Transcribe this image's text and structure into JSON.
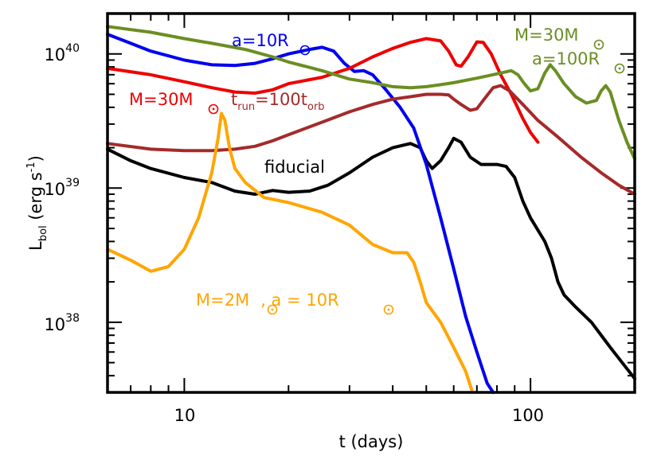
{
  "chart_data": {
    "type": "line",
    "title": "",
    "xlabel": "t (days)",
    "ylabel": "L_bol (erg s^-1)",
    "xscale": "log",
    "yscale": "log",
    "xlim": [
      6.0,
      200.0
    ],
    "ylim": [
      3e+37,
      2e+40
    ],
    "grid": false,
    "x_ticks_major": [
      10,
      100
    ],
    "x_tick_labels": [
      "10",
      "100"
    ],
    "y_ticks_major": [
      1e+38,
      1e+39,
      1e+40
    ],
    "y_tick_labels": [
      {
        "base": "10",
        "exp": "38"
      },
      {
        "base": "10",
        "exp": "39"
      },
      {
        "base": "10",
        "exp": "40"
      }
    ],
    "series": [
      {
        "id": "fiducial",
        "color": "#000000",
        "points": [
          [
            6,
            1.95e+39
          ],
          [
            7,
            1.6e+39
          ],
          [
            8,
            1.4e+39
          ],
          [
            10,
            1.2e+39
          ],
          [
            12,
            1.1e+39
          ],
          [
            14,
            9.5e+38
          ],
          [
            16,
            9e+38
          ],
          [
            17,
            9.3e+38
          ],
          [
            18,
            9.6e+38
          ],
          [
            20,
            9.3e+38
          ],
          [
            23,
            9.5e+38
          ],
          [
            26,
            1.05e+39
          ],
          [
            30,
            1.3e+39
          ],
          [
            35,
            1.7e+39
          ],
          [
            40,
            2e+39
          ],
          [
            45,
            2.15e+39
          ],
          [
            48,
            2e+39
          ],
          [
            50,
            1.6e+39
          ],
          [
            52,
            1.4e+39
          ],
          [
            55,
            1.6e+39
          ],
          [
            58,
            2e+39
          ],
          [
            60,
            2.35e+39
          ],
          [
            63,
            2.2e+39
          ],
          [
            67,
            1.7e+39
          ],
          [
            72,
            1.5e+39
          ],
          [
            80,
            1.5e+39
          ],
          [
            85,
            1.45e+39
          ],
          [
            90,
            1.2e+39
          ],
          [
            95,
            8e+38
          ],
          [
            100,
            6e+38
          ],
          [
            110,
            4e+38
          ],
          [
            115,
            3e+38
          ],
          [
            120,
            2e+38
          ],
          [
            125,
            1.6e+38
          ],
          [
            135,
            1.3e+38
          ],
          [
            150,
            1e+38
          ],
          [
            170,
            6.5e+37
          ],
          [
            190,
            4.5e+37
          ],
          [
            200,
            3.8e+37
          ]
        ]
      },
      {
        "id": "a10",
        "color": "#0000ee",
        "points": [
          [
            6,
            1.4e+40
          ],
          [
            7,
            1.2e+40
          ],
          [
            8,
            1.05e+40
          ],
          [
            10,
            9e+39
          ],
          [
            12,
            8.3e+39
          ],
          [
            14,
            8.2e+39
          ],
          [
            16,
            8.5e+39
          ],
          [
            18,
            9.2e+39
          ],
          [
            20,
            1e+40
          ],
          [
            23,
            1.08e+40
          ],
          [
            25,
            1.12e+40
          ],
          [
            27,
            1.05e+40
          ],
          [
            29,
            8.5e+39
          ],
          [
            31,
            7.4e+39
          ],
          [
            33,
            7.5e+39
          ],
          [
            35,
            7e+39
          ],
          [
            38,
            5.5e+39
          ],
          [
            42,
            4e+39
          ],
          [
            46,
            2.8e+39
          ],
          [
            50,
            1.5e+39
          ],
          [
            55,
            6e+38
          ],
          [
            60,
            2.5e+38
          ],
          [
            65,
            1.1e+38
          ],
          [
            70,
            6e+37
          ],
          [
            75,
            3.5e+37
          ],
          [
            78,
            3e+37
          ]
        ]
      },
      {
        "id": "m30",
        "color": "#ee0000",
        "points": [
          [
            6,
            7.8e+39
          ],
          [
            8,
            7e+39
          ],
          [
            10,
            6.2e+39
          ],
          [
            12,
            5.6e+39
          ],
          [
            14,
            5.2e+39
          ],
          [
            16,
            5.1e+39
          ],
          [
            18,
            5.4e+39
          ],
          [
            20,
            6e+39
          ],
          [
            25,
            6.7e+39
          ],
          [
            30,
            7.8e+39
          ],
          [
            35,
            9.5e+39
          ],
          [
            40,
            1.1e+40
          ],
          [
            45,
            1.22e+40
          ],
          [
            50,
            1.3e+40
          ],
          [
            55,
            1.25e+40
          ],
          [
            58,
            1.05e+40
          ],
          [
            61,
            8.3e+39
          ],
          [
            63,
            8.1e+39
          ],
          [
            66,
            9.5e+39
          ],
          [
            70,
            1.23e+40
          ],
          [
            73,
            1.22e+40
          ],
          [
            77,
            1e+40
          ],
          [
            82,
            7e+39
          ],
          [
            88,
            5e+39
          ],
          [
            95,
            3.3e+39
          ],
          [
            100,
            2.6e+39
          ],
          [
            105,
            2.2e+39
          ]
        ]
      },
      {
        "id": "m30trun",
        "color": "#a52a2a",
        "points": [
          [
            6,
            2.15e+39
          ],
          [
            8,
            1.95e+39
          ],
          [
            10,
            1.9e+39
          ],
          [
            12,
            1.9e+39
          ],
          [
            14,
            1.95e+39
          ],
          [
            16,
            2.05e+39
          ],
          [
            18,
            2.25e+39
          ],
          [
            20,
            2.5e+39
          ],
          [
            25,
            3.1e+39
          ],
          [
            30,
            3.7e+39
          ],
          [
            35,
            4.2e+39
          ],
          [
            40,
            4.6e+39
          ],
          [
            45,
            4.8e+39
          ],
          [
            50,
            5e+39
          ],
          [
            55,
            5e+39
          ],
          [
            58,
            4.95e+39
          ],
          [
            60,
            4.6e+39
          ],
          [
            63,
            4.2e+39
          ],
          [
            67,
            3.8e+39
          ],
          [
            70,
            3.9e+39
          ],
          [
            73,
            4.5e+39
          ],
          [
            78,
            5.6e+39
          ],
          [
            82,
            5.8e+39
          ],
          [
            87,
            5.3e+39
          ],
          [
            95,
            4.2e+39
          ],
          [
            105,
            3.2e+39
          ],
          [
            120,
            2.4e+39
          ],
          [
            140,
            1.7e+39
          ],
          [
            160,
            1.3e+39
          ],
          [
            180,
            1.05e+39
          ],
          [
            200,
            9e+38
          ]
        ]
      },
      {
        "id": "a100",
        "color": "#6b8e23",
        "points": [
          [
            6,
            1.6e+40
          ],
          [
            8,
            1.45e+40
          ],
          [
            10,
            1.3e+40
          ],
          [
            12,
            1.2e+40
          ],
          [
            15,
            1.08e+40
          ],
          [
            18,
            9.5e+39
          ],
          [
            20,
            8.7e+39
          ],
          [
            25,
            7.5e+39
          ],
          [
            30,
            6.5e+39
          ],
          [
            35,
            6.1e+39
          ],
          [
            40,
            5.7e+39
          ],
          [
            45,
            5.6e+39
          ],
          [
            50,
            5.7e+39
          ],
          [
            55,
            5.9e+39
          ],
          [
            60,
            6.1e+39
          ],
          [
            70,
            6.6e+39
          ],
          [
            80,
            7.1e+39
          ],
          [
            88,
            7.5e+39
          ],
          [
            92,
            7e+39
          ],
          [
            96,
            6e+39
          ],
          [
            100,
            5.3e+39
          ],
          [
            105,
            5.5e+39
          ],
          [
            110,
            7.2e+39
          ],
          [
            114,
            8.3e+39
          ],
          [
            118,
            7.5e+39
          ],
          [
            125,
            6e+39
          ],
          [
            135,
            4.8e+39
          ],
          [
            145,
            4.3e+39
          ],
          [
            155,
            4.5e+39
          ],
          [
            160,
            5.3e+39
          ],
          [
            165,
            5.8e+39
          ],
          [
            170,
            5.2e+39
          ],
          [
            180,
            3.2e+39
          ],
          [
            190,
            2.2e+39
          ],
          [
            200,
            1.65e+39
          ]
        ]
      },
      {
        "id": "m2",
        "color": "#ffa500",
        "points": [
          [
            6,
            3.5e+38
          ],
          [
            7,
            2.9e+38
          ],
          [
            8,
            2.4e+38
          ],
          [
            9,
            2.6e+38
          ],
          [
            10,
            3.5e+38
          ],
          [
            11,
            6e+38
          ],
          [
            12,
            1.3e+39
          ],
          [
            12.5,
            2.3e+39
          ],
          [
            12.8,
            3.6e+39
          ],
          [
            13.1,
            3.2e+39
          ],
          [
            13.5,
            2e+39
          ],
          [
            14,
            1.4e+39
          ],
          [
            15,
            1.1e+39
          ],
          [
            17,
            8.5e+38
          ],
          [
            20,
            7.8e+38
          ],
          [
            25,
            6.6e+38
          ],
          [
            30,
            5.3e+38
          ],
          [
            35,
            3.8e+38
          ],
          [
            40,
            3.3e+38
          ],
          [
            44,
            3.3e+38
          ],
          [
            46,
            2.8e+38
          ],
          [
            48,
            2e+38
          ],
          [
            50,
            1.4e+38
          ],
          [
            55,
            1e+38
          ],
          [
            60,
            6.5e+37
          ],
          [
            65,
            4.3e+37
          ],
          [
            68,
            3e+37
          ]
        ]
      }
    ],
    "annotations": [
      {
        "id": "fiducial",
        "color": "#000000",
        "text": "fiducial"
      },
      {
        "id": "a10",
        "color": "#0000ee",
        "text": "a=10R",
        "sun": true
      },
      {
        "id": "m30",
        "color": "#ee0000",
        "text": "M=30M",
        "sun": true
      },
      {
        "id": "trun",
        "color": "#a52a2a",
        "t": "t",
        "run": "run",
        "eq": "=100t",
        "orb": "orb"
      },
      {
        "id": "a100-mass",
        "color": "#6b8e23",
        "text": "M=30M",
        "sun": true
      },
      {
        "id": "a100-sep",
        "color": "#6b8e23",
        "text": "a=100R",
        "sun": true
      },
      {
        "id": "m2",
        "color": "#ffa500",
        "text": "M=2M",
        "mid": ",  a  =  10R",
        "sun": true
      }
    ]
  }
}
